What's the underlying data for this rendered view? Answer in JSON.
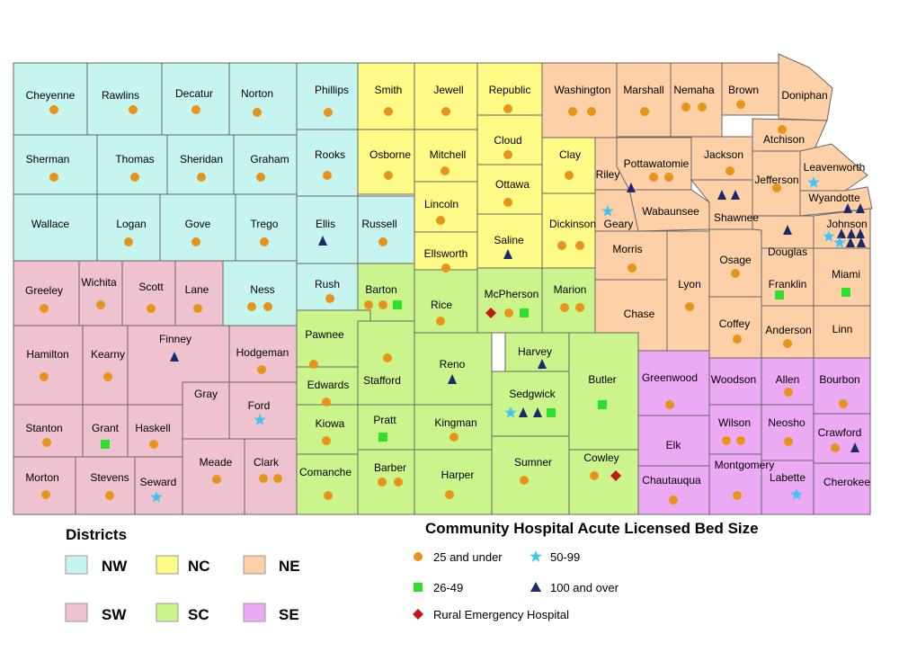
{
  "colors": {
    "NW": "#c6f5ef",
    "NC": "#fffb87",
    "NE": "#fdd0a8",
    "SW": "#eec3cf",
    "SC": "#cbf58c",
    "SE": "#ecaaf5",
    "small": "#e8941a",
    "medium": "#2ee02e",
    "large": "#43c4f0",
    "xlarge": "#1c2a6b",
    "reh": "#c21818"
  },
  "legend": {
    "districts_title": "Districts",
    "districts": [
      {
        "label": "NW",
        "district": "NW"
      },
      {
        "label": "NC",
        "district": "NC"
      },
      {
        "label": "NE",
        "district": "NE"
      },
      {
        "label": "SW",
        "district": "SW"
      },
      {
        "label": "SC",
        "district": "SC"
      },
      {
        "label": "SE",
        "district": "SE"
      }
    ],
    "bedsize_title": "Community Hospital Acute Licensed Bed Size",
    "items": [
      {
        "label": "25 and under",
        "symbol": "circle"
      },
      {
        "label": "50-99",
        "symbol": "star"
      },
      {
        "label": "26-49",
        "symbol": "square"
      },
      {
        "label": "100 and over",
        "symbol": "triangle"
      },
      {
        "label": "Rural Emergency Hospital",
        "symbol": "diamond"
      }
    ]
  },
  "counties": [
    {
      "name": "Cheyenne",
      "district": "NW",
      "hospitals": [
        "small"
      ]
    },
    {
      "name": "Rawlins",
      "district": "NW",
      "hospitals": [
        "small"
      ]
    },
    {
      "name": "Decatur",
      "district": "NW",
      "hospitals": [
        "small"
      ]
    },
    {
      "name": "Norton",
      "district": "NW",
      "hospitals": [
        "small"
      ]
    },
    {
      "name": "Phillips",
      "district": "NW",
      "hospitals": [
        "small"
      ]
    },
    {
      "name": "Smith",
      "district": "NC",
      "hospitals": [
        "small"
      ]
    },
    {
      "name": "Jewell",
      "district": "NC",
      "hospitals": [
        "small"
      ]
    },
    {
      "name": "Republic",
      "district": "NC",
      "hospitals": [
        "small"
      ]
    },
    {
      "name": "Washington",
      "district": "NE",
      "hospitals": [
        "small",
        "small"
      ]
    },
    {
      "name": "Marshall",
      "district": "NE",
      "hospitals": [
        "small"
      ]
    },
    {
      "name": "Nemaha",
      "district": "NE",
      "hospitals": [
        "small",
        "small"
      ]
    },
    {
      "name": "Brown",
      "district": "NE",
      "hospitals": [
        "small"
      ]
    },
    {
      "name": "Doniphan",
      "district": "NE",
      "hospitals": []
    },
    {
      "name": "Sherman",
      "district": "NW",
      "hospitals": [
        "small"
      ]
    },
    {
      "name": "Thomas",
      "district": "NW",
      "hospitals": [
        "small"
      ]
    },
    {
      "name": "Sheridan",
      "district": "NW",
      "hospitals": [
        "small"
      ]
    },
    {
      "name": "Graham",
      "district": "NW",
      "hospitals": [
        "small"
      ]
    },
    {
      "name": "Rooks",
      "district": "NW",
      "hospitals": [
        "small"
      ]
    },
    {
      "name": "Osborne",
      "district": "NC",
      "hospitals": [
        "small"
      ]
    },
    {
      "name": "Mitchell",
      "district": "NC",
      "hospitals": [
        "small"
      ]
    },
    {
      "name": "Cloud",
      "district": "NC",
      "hospitals": [
        "small"
      ]
    },
    {
      "name": "Clay",
      "district": "NC",
      "hospitals": [
        "small"
      ]
    },
    {
      "name": "Riley",
      "district": "NE",
      "hospitals": [
        "xlarge"
      ]
    },
    {
      "name": "Pottawatomie",
      "district": "NE",
      "hospitals": [
        "small",
        "small"
      ]
    },
    {
      "name": "Jackson",
      "district": "NE",
      "hospitals": [
        "small"
      ]
    },
    {
      "name": "Atchison",
      "district": "NE",
      "hospitals": [
        "small"
      ]
    },
    {
      "name": "Jefferson",
      "district": "NE",
      "hospitals": [
        "small"
      ]
    },
    {
      "name": "Leavenworth",
      "district": "NE",
      "hospitals": [
        "large"
      ]
    },
    {
      "name": "Wyandotte",
      "district": "NE",
      "hospitals": [
        "xlarge",
        "xlarge"
      ]
    },
    {
      "name": "Wallace",
      "district": "NW",
      "hospitals": []
    },
    {
      "name": "Logan",
      "district": "NW",
      "hospitals": [
        "small"
      ]
    },
    {
      "name": "Gove",
      "district": "NW",
      "hospitals": [
        "small"
      ]
    },
    {
      "name": "Trego",
      "district": "NW",
      "hospitals": [
        "small"
      ]
    },
    {
      "name": "Ellis",
      "district": "NW",
      "hospitals": [
        "xlarge"
      ]
    },
    {
      "name": "Russell",
      "district": "NW",
      "hospitals": [
        "small"
      ]
    },
    {
      "name": "Lincoln",
      "district": "NC",
      "hospitals": [
        "small"
      ]
    },
    {
      "name": "Ottawa",
      "district": "NC",
      "hospitals": [
        "small"
      ]
    },
    {
      "name": "Dickinson",
      "district": "NC",
      "hospitals": [
        "small",
        "small"
      ]
    },
    {
      "name": "Geary",
      "district": "NE",
      "hospitals": [
        "large"
      ]
    },
    {
      "name": "Wabaunsee",
      "district": "NE",
      "hospitals": []
    },
    {
      "name": "Shawnee",
      "district": "NE",
      "hospitals": [
        "xlarge",
        "xlarge"
      ]
    },
    {
      "name": "Douglas",
      "district": "NE",
      "hospitals": [
        "xlarge"
      ]
    },
    {
      "name": "Johnson",
      "district": "NE",
      "hospitals": [
        "large",
        "xlarge",
        "xlarge",
        "xlarge",
        "large",
        "xlarge",
        "xlarge",
        "xlarge"
      ]
    },
    {
      "name": "Ellsworth",
      "district": "NC",
      "hospitals": [
        "small"
      ]
    },
    {
      "name": "Saline",
      "district": "NC",
      "hospitals": [
        "xlarge"
      ]
    },
    {
      "name": "Morris",
      "district": "NE",
      "hospitals": [
        "small"
      ]
    },
    {
      "name": "Osage",
      "district": "NE",
      "hospitals": [
        "small"
      ]
    },
    {
      "name": "Miami",
      "district": "NE",
      "hospitals": [
        "medium"
      ]
    },
    {
      "name": "Greeley",
      "district": "SW",
      "hospitals": [
        "small"
      ]
    },
    {
      "name": "Wichita",
      "district": "SW",
      "hospitals": [
        "small"
      ]
    },
    {
      "name": "Scott",
      "district": "SW",
      "hospitals": [
        "small"
      ]
    },
    {
      "name": "Lane",
      "district": "SW",
      "hospitals": [
        "small"
      ]
    },
    {
      "name": "Ness",
      "district": "NW",
      "hospitals": [
        "small",
        "small"
      ]
    },
    {
      "name": "Rush",
      "district": "NW",
      "hospitals": [
        "small"
      ]
    },
    {
      "name": "Barton",
      "district": "SC",
      "hospitals": [
        "small",
        "small",
        "medium"
      ]
    },
    {
      "name": "Rice",
      "district": "SC",
      "hospitals": [
        "small"
      ]
    },
    {
      "name": "McPherson",
      "district": "SC",
      "hospitals": [
        "reh",
        "small",
        "medium"
      ]
    },
    {
      "name": "Marion",
      "district": "SC",
      "hospitals": [
        "small",
        "small"
      ]
    },
    {
      "name": "Chase",
      "district": "NE",
      "hospitals": []
    },
    {
      "name": "Lyon",
      "district": "NE",
      "hospitals": [
        "small"
      ]
    },
    {
      "name": "Coffey",
      "district": "NE",
      "hospitals": [
        "small"
      ]
    },
    {
      "name": "Franklin",
      "district": "NE",
      "hospitals": [
        "medium"
      ]
    },
    {
      "name": "Anderson",
      "district": "NE",
      "hospitals": [
        "small"
      ]
    },
    {
      "name": "Linn",
      "district": "NE",
      "hospitals": []
    },
    {
      "name": "Hamilton",
      "district": "SW",
      "hospitals": [
        "small"
      ]
    },
    {
      "name": "Kearny",
      "district": "SW",
      "hospitals": [
        "small"
      ]
    },
    {
      "name": "Finney",
      "district": "SW",
      "hospitals": [
        "xlarge"
      ]
    },
    {
      "name": "Hodgeman",
      "district": "SW",
      "hospitals": [
        "small"
      ]
    },
    {
      "name": "Pawnee",
      "district": "SC",
      "hospitals": [
        "small"
      ]
    },
    {
      "name": "Edwards",
      "district": "SC",
      "hospitals": [
        "small"
      ]
    },
    {
      "name": "Stafford",
      "district": "SC",
      "hospitals": [
        "small"
      ]
    },
    {
      "name": "Reno",
      "district": "SC",
      "hospitals": [
        "xlarge"
      ]
    },
    {
      "name": "Harvey",
      "district": "SC",
      "hospitals": [
        "xlarge"
      ]
    },
    {
      "name": "Sedgwick",
      "district": "SC",
      "hospitals": [
        "large",
        "xlarge",
        "xlarge",
        "medium"
      ]
    },
    {
      "name": "Butler",
      "district": "SC",
      "hospitals": [
        "medium"
      ]
    },
    {
      "name": "Greenwood",
      "district": "SE",
      "hospitals": [
        "small"
      ]
    },
    {
      "name": "Woodson",
      "district": "SE",
      "hospitals": []
    },
    {
      "name": "Allen",
      "district": "SE",
      "hospitals": [
        "small"
      ]
    },
    {
      "name": "Bourbon",
      "district": "SE",
      "hospitals": [
        "small"
      ]
    },
    {
      "name": "Gray",
      "district": "SW",
      "hospitals": []
    },
    {
      "name": "Ford",
      "district": "SW",
      "hospitals": [
        "large"
      ]
    },
    {
      "name": "Kiowa",
      "district": "SC",
      "hospitals": [
        "small"
      ]
    },
    {
      "name": "Pratt",
      "district": "SC",
      "hospitals": [
        "medium"
      ]
    },
    {
      "name": "Kingman",
      "district": "SC",
      "hospitals": [
        "small"
      ]
    },
    {
      "name": "Wilson",
      "district": "SE",
      "hospitals": [
        "small",
        "small"
      ]
    },
    {
      "name": "Neosho",
      "district": "SE",
      "hospitals": [
        "small"
      ]
    },
    {
      "name": "Stanton",
      "district": "SW",
      "hospitals": [
        "small"
      ]
    },
    {
      "name": "Grant",
      "district": "SW",
      "hospitals": [
        "medium"
      ]
    },
    {
      "name": "Haskell",
      "district": "SW",
      "hospitals": [
        "small"
      ]
    },
    {
      "name": "Crawford",
      "district": "SE",
      "hospitals": [
        "small",
        "xlarge"
      ]
    },
    {
      "name": "Elk",
      "district": "SE",
      "hospitals": []
    },
    {
      "name": "Morton",
      "district": "SW",
      "hospitals": [
        "small"
      ]
    },
    {
      "name": "Stevens",
      "district": "SW",
      "hospitals": [
        "small"
      ]
    },
    {
      "name": "Seward",
      "district": "SW",
      "hospitals": [
        "large"
      ]
    },
    {
      "name": "Meade",
      "district": "SW",
      "hospitals": [
        "small"
      ]
    },
    {
      "name": "Clark",
      "district": "SW",
      "hospitals": [
        "small",
        "small"
      ]
    },
    {
      "name": "Comanche",
      "district": "SC",
      "hospitals": [
        "small"
      ]
    },
    {
      "name": "Barber",
      "district": "SC",
      "hospitals": [
        "small",
        "small"
      ]
    },
    {
      "name": "Harper",
      "district": "SC",
      "hospitals": [
        "small"
      ]
    },
    {
      "name": "Sumner",
      "district": "SC",
      "hospitals": [
        "small"
      ]
    },
    {
      "name": "Cowley",
      "district": "SC",
      "hospitals": [
        "small",
        "reh"
      ]
    },
    {
      "name": "Chautauqua",
      "district": "SE",
      "hospitals": [
        "small"
      ]
    },
    {
      "name": "Montgomery",
      "district": "SE",
      "hospitals": [
        "small"
      ]
    },
    {
      "name": "Labette",
      "district": "SE",
      "hospitals": [
        "large"
      ]
    },
    {
      "name": "Cherokee",
      "district": "SE",
      "hospitals": []
    }
  ]
}
